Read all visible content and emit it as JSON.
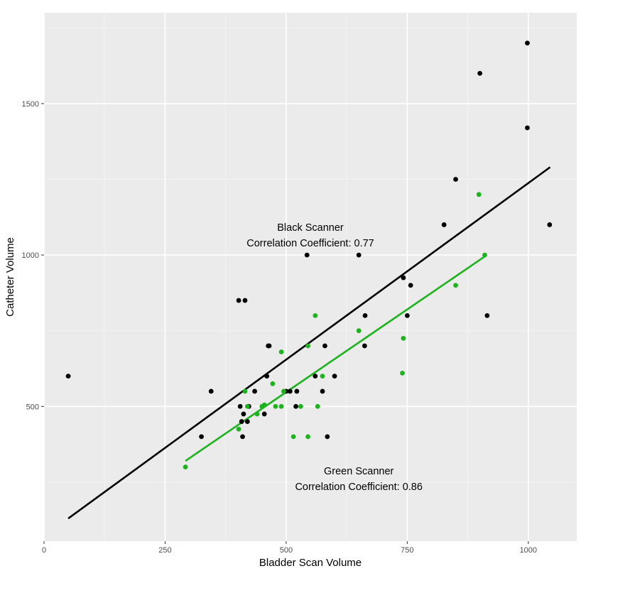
{
  "chart_data": {
    "type": "scatter",
    "title": "",
    "xlabel": "Bladder Scan Volume",
    "ylabel": "Catheter Volume",
    "xlim": [
      0,
      1100
    ],
    "ylim": [
      55,
      1800
    ],
    "x_ticks": [
      0,
      250,
      500,
      750,
      1000
    ],
    "x_tick_labels": [
      "0",
      "250",
      "500",
      "750",
      "1000"
    ],
    "y_ticks": [
      500,
      1000,
      1500
    ],
    "y_tick_labels": [
      "500",
      "1000",
      "1500"
    ],
    "grid": true,
    "background": "#ebebeb",
    "annotations": [
      {
        "lines": [
          "Black Scanner",
          "Correlation Coefficient: 0.77"
        ],
        "x": 550,
        "y": 1080
      },
      {
        "lines": [
          "Green Scanner",
          "Correlation Coefficient: 0.86"
        ],
        "x": 650,
        "y": 275
      }
    ],
    "series": [
      {
        "color": "#000000",
        "fit_line": {
          "x": [
            50,
            1045
          ],
          "y": [
            130,
            1290
          ]
        },
        "points": [
          [
            50,
            600
          ],
          [
            325,
            400
          ],
          [
            345,
            550
          ],
          [
            402,
            850
          ],
          [
            405,
            500
          ],
          [
            408,
            450
          ],
          [
            410,
            400
          ],
          [
            412,
            475
          ],
          [
            415,
            850
          ],
          [
            420,
            450
          ],
          [
            423,
            500
          ],
          [
            435,
            550
          ],
          [
            455,
            475
          ],
          [
            460,
            600
          ],
          [
            463,
            700
          ],
          [
            465,
            700
          ],
          [
            500,
            550
          ],
          [
            508,
            550
          ],
          [
            520,
            500
          ],
          [
            522,
            550
          ],
          [
            543,
            1000
          ],
          [
            560,
            600
          ],
          [
            575,
            550
          ],
          [
            580,
            700
          ],
          [
            585,
            400
          ],
          [
            600,
            600
          ],
          [
            650,
            1000
          ],
          [
            662,
            700
          ],
          [
            663,
            800
          ],
          [
            742,
            925
          ],
          [
            750,
            800
          ],
          [
            757,
            900
          ],
          [
            826,
            1100
          ],
          [
            850,
            1250
          ],
          [
            900,
            1600
          ],
          [
            915,
            800
          ],
          [
            998,
            1700
          ],
          [
            998,
            1420
          ],
          [
            1044,
            1100
          ]
        ]
      },
      {
        "color": "#1db31d",
        "fit_line": {
          "x": [
            292,
            910
          ],
          "y": [
            320,
            995
          ]
        },
        "points": [
          [
            292,
            300
          ],
          [
            402,
            425
          ],
          [
            415,
            550
          ],
          [
            420,
            500
          ],
          [
            440,
            475
          ],
          [
            450,
            500
          ],
          [
            455,
            505
          ],
          [
            472,
            575
          ],
          [
            478,
            500
          ],
          [
            490,
            500
          ],
          [
            490,
            680
          ],
          [
            495,
            550
          ],
          [
            515,
            400
          ],
          [
            530,
            500
          ],
          [
            545,
            400
          ],
          [
            545,
            700
          ],
          [
            560,
            800
          ],
          [
            565,
            500
          ],
          [
            575,
            600
          ],
          [
            650,
            750
          ],
          [
            740,
            610
          ],
          [
            742,
            725
          ],
          [
            850,
            900
          ],
          [
            898,
            1200
          ],
          [
            910,
            1000
          ]
        ]
      }
    ]
  }
}
